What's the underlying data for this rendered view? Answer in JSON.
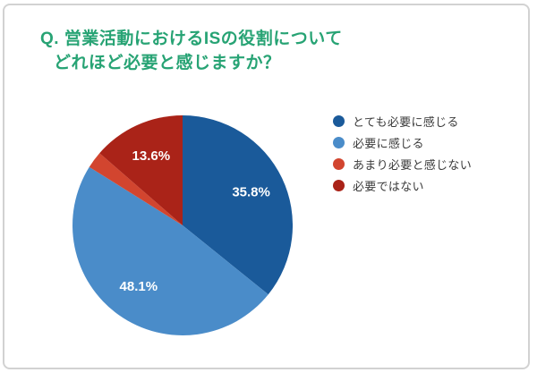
{
  "card": {
    "title_line1": "Q. 営業活動におけるISの役割について",
    "title_line2": "どれほど必要と感じますか？",
    "title_color": "#27a374",
    "border_color": "#d2d2d2"
  },
  "chart_data": {
    "type": "pie",
    "title": "営業活動におけるISの役割についてどれほど必要と感じますか？",
    "direction": "clockwise",
    "start_angle": "12-o-clock",
    "legend_position": "right",
    "value_label_color": "#ffffff",
    "segments": [
      {
        "label": "とても必要に感じる",
        "value": 35.8,
        "display": "35.8%",
        "color": "#1a5a9a"
      },
      {
        "label": "必要に感じる",
        "value": 48.1,
        "display": "48.1%",
        "color": "#4a8cc9"
      },
      {
        "label": "あまり必要と感じない",
        "value": 2.5,
        "display": "",
        "color": "#d2452f"
      },
      {
        "label": "必要ではない",
        "value": 13.6,
        "display": "13.6%",
        "color": "#aa2318"
      }
    ]
  }
}
